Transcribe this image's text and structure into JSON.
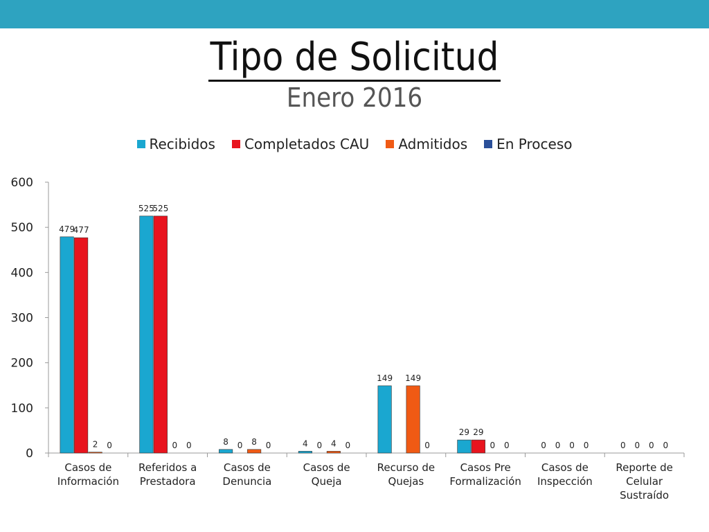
{
  "title": "Tipo de Solicitud",
  "subtitle": "Enero 2016",
  "chart_data": {
    "type": "bar",
    "categories": [
      [
        "Casos de",
        "Información"
      ],
      [
        "Referidos a",
        "Prestadora"
      ],
      [
        "Casos de",
        "Denuncia"
      ],
      [
        "Casos de",
        "Queja"
      ],
      [
        "Recurso de",
        "Quejas"
      ],
      [
        "Casos Pre",
        "Formalización"
      ],
      [
        "Casos de",
        "Inspección"
      ],
      [
        "Reporte de",
        "Celular",
        "Sustraído"
      ]
    ],
    "series": [
      {
        "name": "Recibidos",
        "color": "#1aa7d0",
        "values": [
          479,
          525,
          8,
          4,
          149,
          29,
          0,
          0
        ],
        "labels": [
          "479",
          "525",
          "8",
          "4",
          "149",
          "29",
          "0",
          "0"
        ]
      },
      {
        "name": "Completados CAU",
        "color": "#e8141e",
        "values": [
          477,
          525,
          0,
          0,
          0,
          29,
          0,
          0
        ],
        "labels": [
          "477",
          "525",
          "0",
          "0",
          "",
          "29",
          "0",
          "0"
        ]
      },
      {
        "name": "Admitidos",
        "color": "#f05a14",
        "values": [
          2,
          0,
          8,
          4,
          149,
          0,
          0,
          0
        ],
        "labels": [
          "2",
          "0",
          "8",
          "4",
          "149",
          "0",
          "0",
          "0"
        ]
      },
      {
        "name": "En Proceso",
        "color": "#2a4f99",
        "values": [
          0,
          0,
          0,
          0,
          0,
          0,
          0,
          0
        ],
        "labels": [
          "0",
          "0",
          "0",
          "0",
          "0",
          "0",
          "0",
          "0"
        ]
      }
    ],
    "ylim": [
      0,
      600
    ],
    "yticks": [
      0,
      100,
      200,
      300,
      400,
      500,
      600
    ],
    "legend_position": "top",
    "grid": false
  }
}
